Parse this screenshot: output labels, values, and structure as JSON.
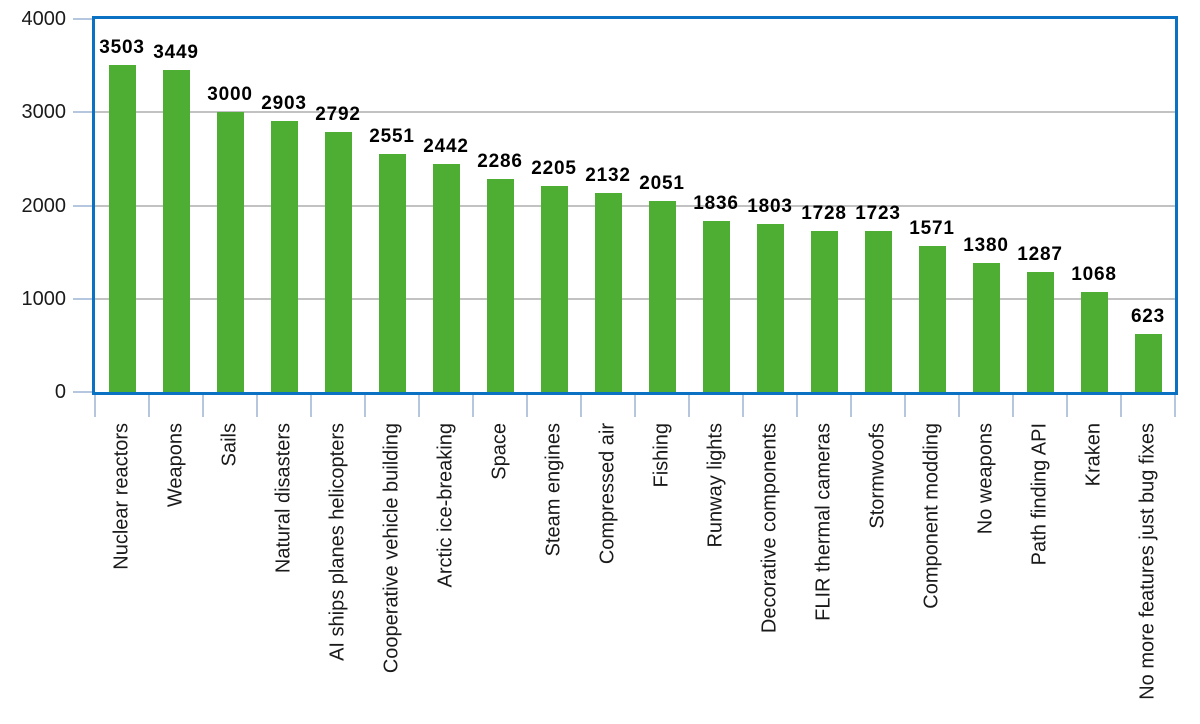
{
  "chart_data": {
    "type": "bar",
    "title": "",
    "xlabel": "",
    "ylabel": "",
    "categories": [
      "Nuclear reactors",
      "Weapons",
      "Sails",
      "Natural disasters",
      "AI ships planes helicopters",
      "Cooperative vehicle building",
      "Arctic ice-breaking",
      "Space",
      "Steam engines",
      "Compressed air",
      "Fishing",
      "Runway lights",
      "Decorative components",
      "FLIR thermal cameras",
      "Stormwoofs",
      "Component modding",
      "No weapons",
      "Path finding API",
      "Kraken",
      "No more features just bug fixes"
    ],
    "values": [
      3503,
      3449,
      3000,
      2903,
      2792,
      2551,
      2442,
      2286,
      2205,
      2132,
      2051,
      1836,
      1803,
      1728,
      1723,
      1571,
      1380,
      1287,
      1068,
      623
    ],
    "ylim": [
      0,
      4000
    ],
    "yticks": [
      0,
      1000,
      2000,
      3000,
      4000
    ],
    "grid": true,
    "legend": false,
    "value_labels_shown": true,
    "x_label_rotation_deg": 90,
    "colors": {
      "bar": "#4ead33",
      "frame": "#0b71c2",
      "gridline": "#c2c2c2",
      "tick": "#b4c7de",
      "value_label": "#000000",
      "axis_label": "#1a1a1a"
    }
  }
}
